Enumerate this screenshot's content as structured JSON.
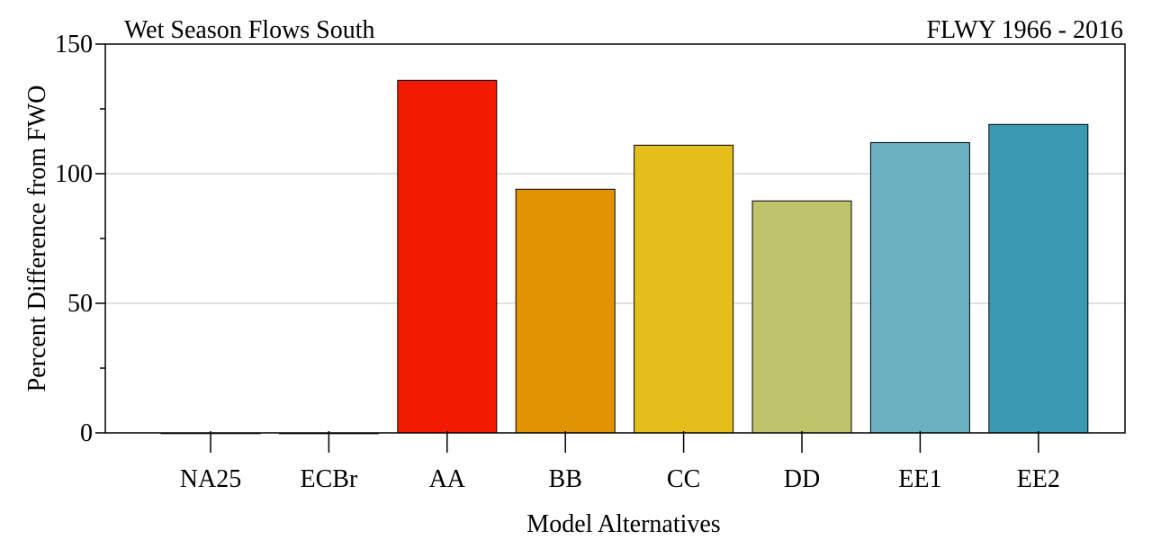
{
  "chart_data": {
    "type": "bar",
    "title": "Wet Season Flows South",
    "subtitle": "FLWY 1966 - 2016",
    "xlabel": "Model Alternatives",
    "ylabel": "Percent Difference from FWO",
    "ylim": [
      0,
      150
    ],
    "yticks_major": [
      0,
      50,
      100,
      150
    ],
    "yticks_minor": [
      25,
      75,
      125
    ],
    "grid": true,
    "categories": [
      "NA25",
      "ECBr",
      "AA",
      "BB",
      "CC",
      "DD",
      "EE1",
      "EE2"
    ],
    "values": [
      0,
      -0.3,
      136,
      94,
      111,
      89.5,
      112,
      119
    ],
    "colors": [
      "#FFFFFF",
      "#FFFFFF",
      "#F21A00",
      "#E19303",
      "#E6BE1C",
      "#BFC46A",
      "#6BB1C1",
      "#3B9AB2"
    ]
  }
}
